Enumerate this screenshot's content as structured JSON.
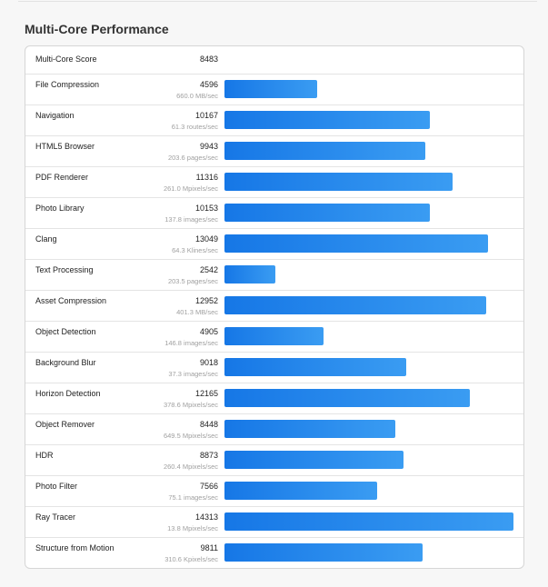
{
  "title": "Multi-Core Performance",
  "summary": {
    "label": "Multi-Core Score",
    "score": 8483
  },
  "rows": [
    {
      "name": "File Compression",
      "score": 4596,
      "rate": "660.0 MB/sec"
    },
    {
      "name": "Navigation",
      "score": 10167,
      "rate": "61.3 routes/sec"
    },
    {
      "name": "HTML5 Browser",
      "score": 9943,
      "rate": "203.6 pages/sec"
    },
    {
      "name": "PDF Renderer",
      "score": 11316,
      "rate": "261.0 Mpixels/sec"
    },
    {
      "name": "Photo Library",
      "score": 10153,
      "rate": "137.8 images/sec"
    },
    {
      "name": "Clang",
      "score": 13049,
      "rate": "64.3 Klines/sec"
    },
    {
      "name": "Text Processing",
      "score": 2542,
      "rate": "203.5 pages/sec"
    },
    {
      "name": "Asset Compression",
      "score": 12952,
      "rate": "401.3 MB/sec"
    },
    {
      "name": "Object Detection",
      "score": 4905,
      "rate": "146.8 images/sec"
    },
    {
      "name": "Background Blur",
      "score": 9018,
      "rate": "37.3 images/sec"
    },
    {
      "name": "Horizon Detection",
      "score": 12165,
      "rate": "378.6 Mpixels/sec"
    },
    {
      "name": "Object Remover",
      "score": 8448,
      "rate": "649.5 Mpixels/sec"
    },
    {
      "name": "HDR",
      "score": 8873,
      "rate": "260.4 Mpixels/sec"
    },
    {
      "name": "Photo Filter",
      "score": 7566,
      "rate": "75.1 images/sec"
    },
    {
      "name": "Ray Tracer",
      "score": 14313,
      "rate": "13.8 Mpixels/sec"
    },
    {
      "name": "Structure from Motion",
      "score": 9811,
      "rate": "310.6 Kpixels/sec"
    }
  ]
}
